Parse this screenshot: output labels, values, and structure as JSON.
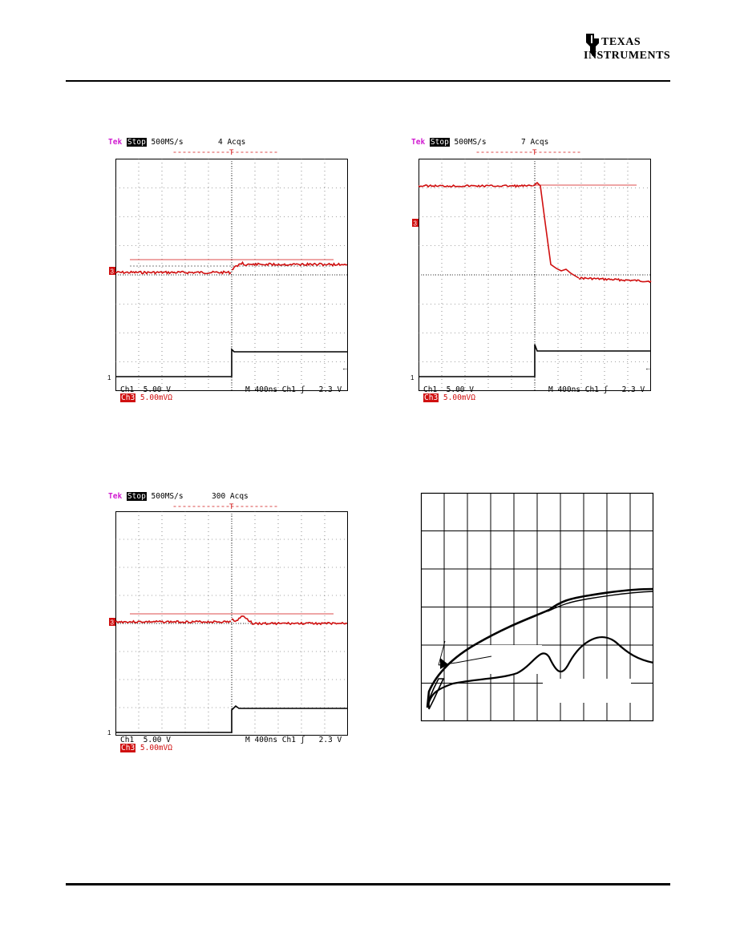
{
  "header": {
    "logo": {
      "icon": "ti-logo-icon",
      "line1": "Texas",
      "line2": "Instruments"
    }
  },
  "scopes": [
    {
      "id": "scope-1",
      "brand": "Tek",
      "state": "Stop",
      "rate": "500MS/s",
      "acqs": "4 Acqs",
      "ch1": "Ch1",
      "ch1_scale": "5.00 V",
      "timebase": "M 400ns",
      "trigger_src": "Ch1",
      "trigger_slope": "ʃ",
      "trigger_level": "2.3 V",
      "ch3": "Ch3",
      "ch3_scale": "5.00mVΩ",
      "marker_ch3": "3",
      "marker_ch1": "1"
    },
    {
      "id": "scope-2",
      "brand": "Tek",
      "state": "Stop",
      "rate": "500MS/s",
      "acqs": "7 Acqs",
      "ch1": "Ch1",
      "ch1_scale": "5.00 V",
      "timebase": "M 400ns",
      "trigger_src": "Ch1",
      "trigger_slope": "ʃ",
      "trigger_level": "2.3 V",
      "ch3": "Ch3",
      "ch3_scale": "5.00mVΩ",
      "marker_ch3": "3",
      "marker_ch1": "1"
    },
    {
      "id": "scope-3",
      "brand": "Tek",
      "state": "Stop",
      "rate": "500MS/s",
      "acqs": "300 Acqs",
      "ch1": "Ch1",
      "ch1_scale": "5.00 V",
      "timebase": "M 400ns",
      "trigger_src": "Ch1",
      "trigger_slope": "ʃ",
      "trigger_level": "2.3 V",
      "ch3": "Ch3",
      "ch3_scale": "5.00mVΩ",
      "marker_ch3": "3",
      "marker_ch1": "1"
    }
  ],
  "colors": {
    "trace_ch3": "#d01010",
    "trace_ch1": "#000000",
    "brand": "#d01ad0",
    "grid": "#000000"
  }
}
